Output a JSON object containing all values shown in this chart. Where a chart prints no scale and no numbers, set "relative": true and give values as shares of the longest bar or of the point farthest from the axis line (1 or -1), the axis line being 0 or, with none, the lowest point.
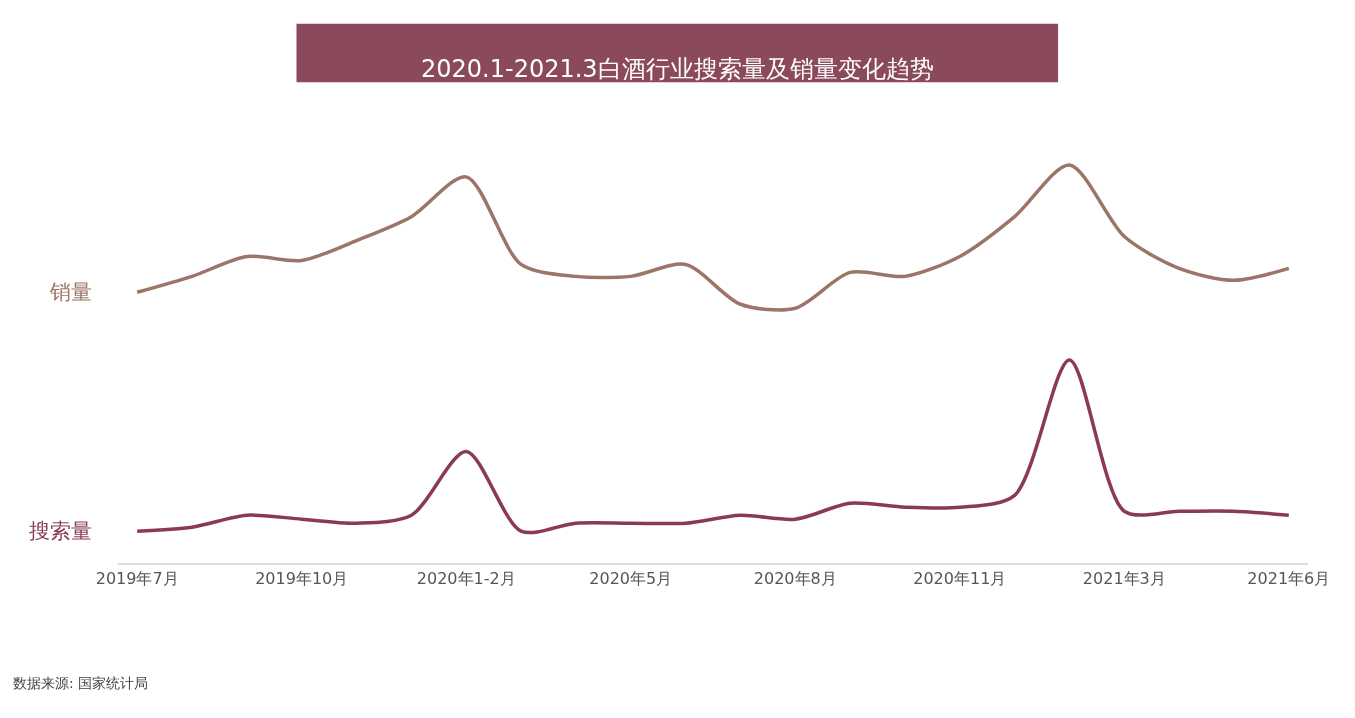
{
  "chart_data": {
    "type": "line",
    "title": "2020.1-2021.3白酒行业搜索量及销量变化趋势",
    "relative": true,
    "legend": false,
    "marker": "none",
    "line_style": "solid",
    "categories": [
      "2019年7月",
      null,
      null,
      "2019年10月",
      null,
      null,
      "2020年1-2月",
      null,
      null,
      "2020年5月",
      null,
      null,
      "2020年8月",
      null,
      null,
      "2020年11月",
      null,
      null,
      "2021年3月",
      null,
      null,
      "2021年6月"
    ],
    "series": [
      {
        "name": "销量",
        "color": "#9c7468",
        "values": [
          0.68,
          0.72,
          0.77,
          0.76,
          0.81,
          0.87,
          0.97,
          0.75,
          0.72,
          0.72,
          0.75,
          0.65,
          0.64,
          0.73,
          0.72,
          0.77,
          0.87,
          1.0,
          0.82,
          0.74,
          0.71,
          0.74
        ]
      },
      {
        "name": "搜索量",
        "color": "#8b3a55",
        "values": [
          0.08,
          0.09,
          0.12,
          0.11,
          0.1,
          0.12,
          0.28,
          0.08,
          0.1,
          0.1,
          0.1,
          0.12,
          0.11,
          0.15,
          0.14,
          0.14,
          0.17,
          0.51,
          0.13,
          0.13,
          0.13,
          0.12
        ]
      }
    ],
    "annotations": [
      "数据来源: 国家统计局"
    ]
  }
}
